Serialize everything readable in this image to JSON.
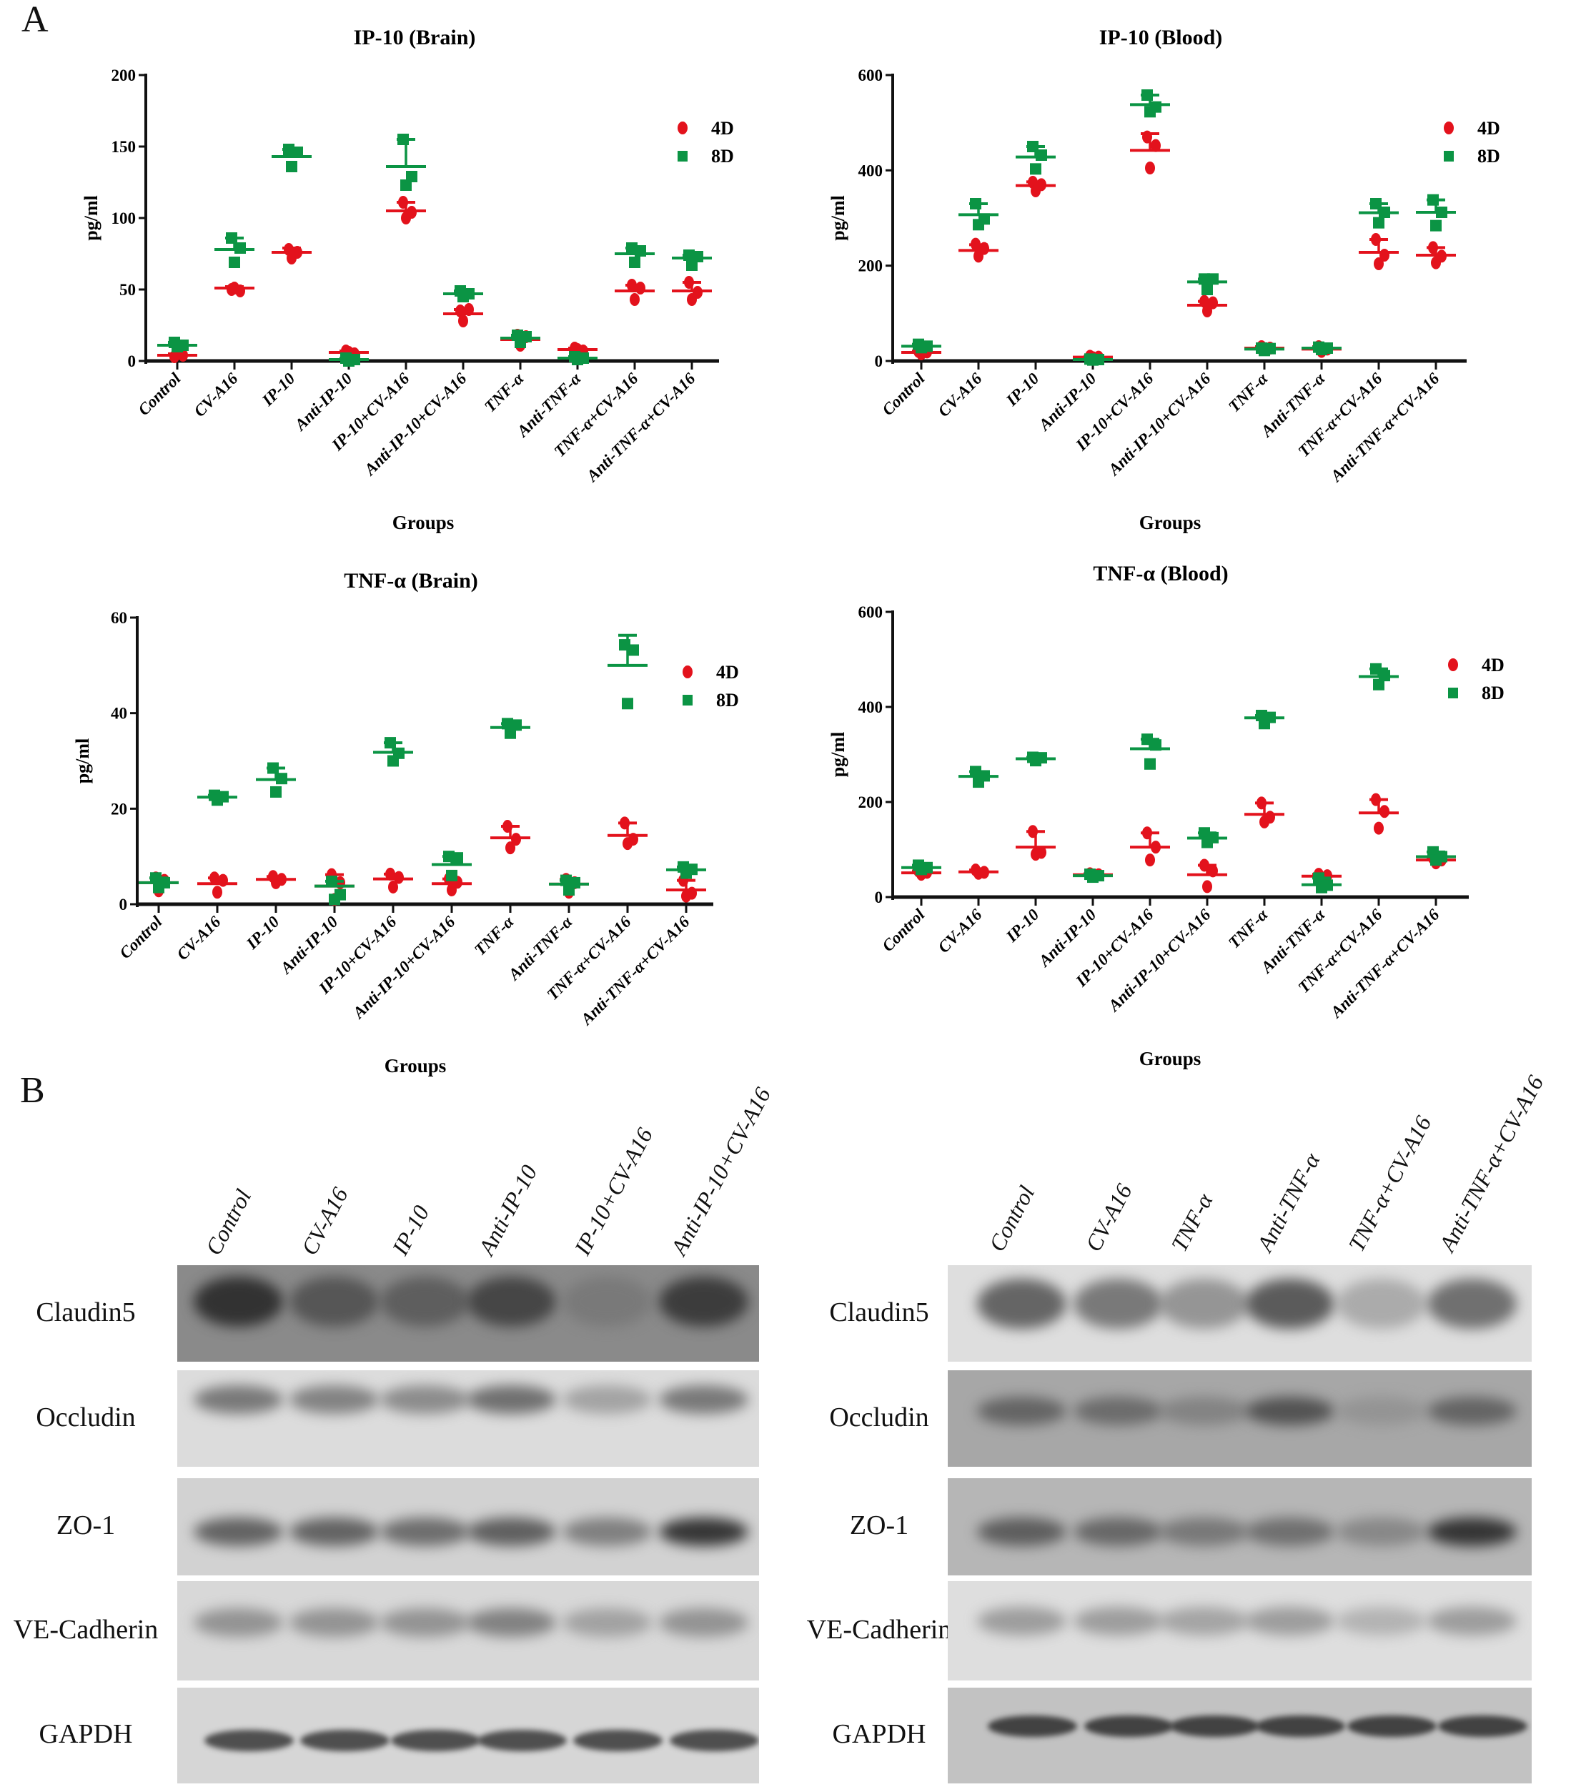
{
  "panels": {
    "a_label": "A",
    "b_label": "B"
  },
  "colors": {
    "d4": "#e3121c",
    "d8": "#0b9444",
    "axis": "#111111"
  },
  "chart_data": [
    {
      "type": "scatter",
      "title": "IP-10 (Brain)",
      "ylabel": "pg/ml",
      "xlabel": "Groups",
      "ylim": [
        0,
        200
      ],
      "yticks": [
        0,
        50,
        100,
        150,
        200
      ],
      "legend": [
        "4D",
        "8D"
      ],
      "legend_position": "top-right",
      "categories": [
        "Control",
        "CV-A16",
        "IP-10",
        "Anti-IP-10",
        "IP-10+CV-A16",
        "Anti-IP-10+CV-A16",
        "TNF-α",
        "Anti-TNF-α",
        "TNF-α+CV-A16",
        "Anti-TNF-α+CV-A16"
      ],
      "series": [
        {
          "name": "4D",
          "marker": "circle",
          "mean": [
            4,
            51,
            76,
            6,
            105,
            33,
            15,
            8,
            49,
            49
          ],
          "sd": [
            1,
            1,
            3,
            1,
            6,
            3,
            3,
            1,
            4,
            6
          ],
          "points": [
            [
              3,
              5,
              4
            ],
            [
              50,
              51,
              49
            ],
            [
              78,
              72,
              76
            ],
            [
              7,
              6,
              5
            ],
            [
              111,
              100,
              104
            ],
            [
              35,
              28,
              36
            ],
            [
              18,
              11,
              17
            ],
            [
              9,
              8,
              7
            ],
            [
              53,
              43,
              51
            ],
            [
              55,
              43,
              48
            ]
          ]
        },
        {
          "name": "8D",
          "marker": "square",
          "mean": [
            11,
            78,
            143,
            1,
            136,
            47,
            16,
            2,
            75,
            72
          ],
          "sd": [
            2,
            8,
            5,
            1,
            19,
            2,
            2,
            1,
            4,
            2
          ],
          "points": [
            [
              13,
              10,
              11
            ],
            [
              86,
              69,
              79
            ],
            [
              148,
              136,
              146
            ],
            [
              2,
              0,
              1
            ],
            [
              155,
              123,
              129
            ],
            [
              49,
              45,
              47
            ],
            [
              18,
              13,
              17
            ],
            [
              3,
              1,
              2
            ],
            [
              79,
              69,
              77
            ],
            [
              74,
              67,
              73
            ]
          ]
        }
      ]
    },
    {
      "type": "scatter",
      "title": "IP-10 (Blood)",
      "ylabel": "pg/ml",
      "xlabel": "Groups",
      "ylim": [
        0,
        600
      ],
      "yticks": [
        0,
        200,
        400,
        600
      ],
      "legend": [
        "4D",
        "8D"
      ],
      "legend_position": "top-right",
      "categories": [
        "Control",
        "CV-A16",
        "IP-10",
        "Anti-IP-10",
        "IP-10+CV-A16",
        "Anti-IP-10+CV-A16",
        "TNF-α",
        "Anti-TNF-α",
        "TNF-α+CV-A16",
        "Anti-TNF-α+CV-A16"
      ],
      "series": [
        {
          "name": "4D",
          "marker": "circle",
          "mean": [
            18,
            232,
            368,
            8,
            442,
            117,
            27,
            25,
            228,
            222
          ],
          "sd": [
            3,
            12,
            8,
            2,
            35,
            8,
            3,
            5,
            27,
            16
          ],
          "points": [
            [
              20,
              15,
              19
            ],
            [
              245,
              220,
              236
            ],
            [
              375,
              357,
              370
            ],
            [
              10,
              7,
              8
            ],
            [
              470,
              405,
              452
            ],
            [
              125,
              105,
              122
            ],
            [
              30,
              25,
              27
            ],
            [
              30,
              20,
              25
            ],
            [
              255,
              204,
              222
            ],
            [
              238,
              206,
              220
            ]
          ]
        },
        {
          "name": "8D",
          "marker": "square",
          "mean": [
            31,
            307,
            428,
            3,
            538,
            166,
            25,
            27,
            311,
            312
          ],
          "sd": [
            4,
            23,
            22,
            1,
            20,
            6,
            2,
            2,
            19,
            26
          ],
          "points": [
            [
              35,
              28,
              31
            ],
            [
              330,
              286,
              298
            ],
            [
              450,
              403,
              432
            ],
            [
              4,
              2,
              3
            ],
            [
              558,
              523,
              533
            ],
            [
              172,
              150,
              172
            ],
            [
              27,
              22,
              26
            ],
            [
              29,
              24,
              27
            ],
            [
              330,
              290,
              312
            ],
            [
              338,
              284,
              312
            ]
          ]
        }
      ]
    },
    {
      "type": "scatter",
      "title": "TNF-α  (Brain)",
      "ylabel": "pg/ml",
      "xlabel": "Groups",
      "ylim": [
        0,
        60
      ],
      "yticks": [
        0,
        20,
        40,
        60
      ],
      "legend": [
        "4D",
        "8D"
      ],
      "legend_position": "top-right",
      "categories": [
        "Control",
        "CV-A16",
        "IP-10",
        "Anti-IP-10",
        "IP-10+CV-A16",
        "Anti-IP-10+CV-A16",
        "TNF-α",
        "Anti-TNF-α",
        "TNF-α+CV-A16",
        "Anti-TNF-α+CV-A16"
      ],
      "series": [
        {
          "name": "4D",
          "marker": "circle",
          "mean": [
            4.5,
            4.3,
            5.2,
            3.8,
            5.3,
            4.3,
            13.9,
            4.2,
            14.4,
            3.0
          ],
          "sd": [
            1.0,
            1.2,
            0.6,
            2.4,
            1.0,
            1.0,
            2.4,
            1.0,
            2.6,
            2.0
          ],
          "points": [
            [
              5.5,
              2.8,
              5
            ],
            [
              5.5,
              2.5,
              5
            ],
            [
              5.8,
              4.5,
              5.2
            ],
            [
              6.2,
              1,
              4.5
            ],
            [
              6.3,
              3.6,
              5.6
            ],
            [
              5.3,
              3,
              4.6
            ],
            [
              16.3,
              11.8,
              13.6
            ],
            [
              5.2,
              2.5,
              4.5
            ],
            [
              17,
              12.7,
              13.6
            ],
            [
              5,
              1.7,
              2.3
            ]
          ]
        },
        {
          "name": "8D",
          "marker": "square",
          "mean": [
            4.5,
            22.4,
            26.1,
            3.8,
            31.8,
            8.3,
            37.0,
            4.2,
            50.0,
            7.2
          ],
          "sd": [
            1.0,
            0.4,
            2.4,
            1.0,
            2.0,
            1.7,
            0.8,
            0.8,
            6.3,
            0.6
          ],
          "points": [
            [
              5.5,
              3.5,
              4.5
            ],
            [
              22.8,
              21.8,
              22.5
            ],
            [
              28.5,
              23.5,
              26.3
            ],
            [
              4.8,
              1,
              2
            ],
            [
              33.8,
              30,
              31.6
            ],
            [
              10,
              6,
              9.7
            ],
            [
              37.8,
              35.8,
              37.5
            ],
            [
              5,
              3,
              4.5
            ],
            [
              54.3,
              42,
              53.2
            ],
            [
              7.8,
              6.5,
              7.3
            ]
          ]
        }
      ]
    },
    {
      "type": "scatter",
      "title": "TNF-α  (Blood)",
      "ylabel": "pg/ml",
      "xlabel": "Groups",
      "ylim": [
        0,
        600
      ],
      "yticks": [
        0,
        200,
        400,
        600
      ],
      "legend": [
        "4D",
        "8D"
      ],
      "legend_position": "top-right",
      "categories": [
        "Control",
        "CV-A16",
        "IP-10",
        "Anti-IP-10",
        "IP-10+CV-A16",
        "Anti-IP-10+CV-A16",
        "TNF-α",
        "Anti-TNF-α",
        "TNF-α+CV-A16",
        "Anti-TNF-α+CV-A16"
      ],
      "series": [
        {
          "name": "4D",
          "marker": "circle",
          "mean": [
            51,
            53,
            105,
            47,
            105,
            47,
            174,
            44,
            177,
            78
          ],
          "sd": [
            4,
            4,
            33,
            2,
            30,
            20,
            24,
            4,
            28,
            4
          ],
          "points": [
            [
              55,
              48,
              52
            ],
            [
              57,
              50,
              52
            ],
            [
              138,
              90,
              94
            ],
            [
              49,
              45,
              47
            ],
            [
              135,
              78,
              105
            ],
            [
              67,
              22,
              55
            ],
            [
              198,
              158,
              168
            ],
            [
              48,
              40,
              45
            ],
            [
              205,
              145,
              180
            ],
            [
              82,
              72,
              78
            ]
          ]
        },
        {
          "name": "8D",
          "marker": "square",
          "mean": [
            62,
            254,
            291,
            45,
            312,
            124,
            377,
            26,
            464,
            85
          ],
          "sd": [
            5,
            10,
            3,
            3,
            20,
            11,
            5,
            14,
            16,
            10
          ],
          "points": [
            [
              67,
              58,
              62
            ],
            [
              264,
              242,
              255
            ],
            [
              294,
              287,
              293
            ],
            [
              48,
              42,
              45
            ],
            [
              332,
              280,
              320
            ],
            [
              135,
              115,
              125
            ],
            [
              382,
              365,
              378
            ],
            [
              40,
              20,
              25
            ],
            [
              480,
              447,
              466
            ],
            [
              95,
              78,
              85
            ]
          ]
        }
      ]
    }
  ],
  "blots": [
    {
      "lanes": [
        "Control",
        "CV-A16",
        "IP-10",
        "Anti-IP-10",
        "IP-10+CV-A16",
        "Anti-IP-10+CV-A16"
      ],
      "rows": [
        {
          "label": "Claudin5",
          "intensity": [
            0.9,
            0.7,
            0.65,
            0.8,
            0.45,
            0.85
          ]
        },
        {
          "label": "Occludin",
          "intensity": [
            0.6,
            0.55,
            0.5,
            0.65,
            0.35,
            0.6
          ]
        },
        {
          "label": "ZO-1",
          "intensity": [
            0.7,
            0.7,
            0.65,
            0.72,
            0.55,
            0.9
          ]
        },
        {
          "label": "VE-Cadherin",
          "intensity": [
            0.45,
            0.45,
            0.45,
            0.55,
            0.35,
            0.45
          ]
        },
        {
          "label": "GAPDH",
          "intensity": [
            0.8,
            0.8,
            0.8,
            0.8,
            0.8,
            0.8
          ]
        }
      ]
    },
    {
      "lanes": [
        "Control",
        "CV-A16",
        "TNF-α",
        "Anti-TNF-α",
        "TNF-α+CV-A16",
        "Anti-TNF-α+CV-A16"
      ],
      "rows": [
        {
          "label": "Claudin5",
          "intensity": [
            0.7,
            0.6,
            0.45,
            0.75,
            0.3,
            0.65
          ]
        },
        {
          "label": "Occludin",
          "intensity": [
            0.65,
            0.6,
            0.45,
            0.75,
            0.3,
            0.65
          ]
        },
        {
          "label": "ZO-1",
          "intensity": [
            0.7,
            0.65,
            0.55,
            0.6,
            0.45,
            0.9
          ]
        },
        {
          "label": "VE-Cadherin",
          "intensity": [
            0.4,
            0.4,
            0.35,
            0.4,
            0.25,
            0.4
          ]
        },
        {
          "label": "GAPDH",
          "intensity": [
            0.85,
            0.85,
            0.85,
            0.85,
            0.85,
            0.85
          ]
        }
      ]
    }
  ]
}
